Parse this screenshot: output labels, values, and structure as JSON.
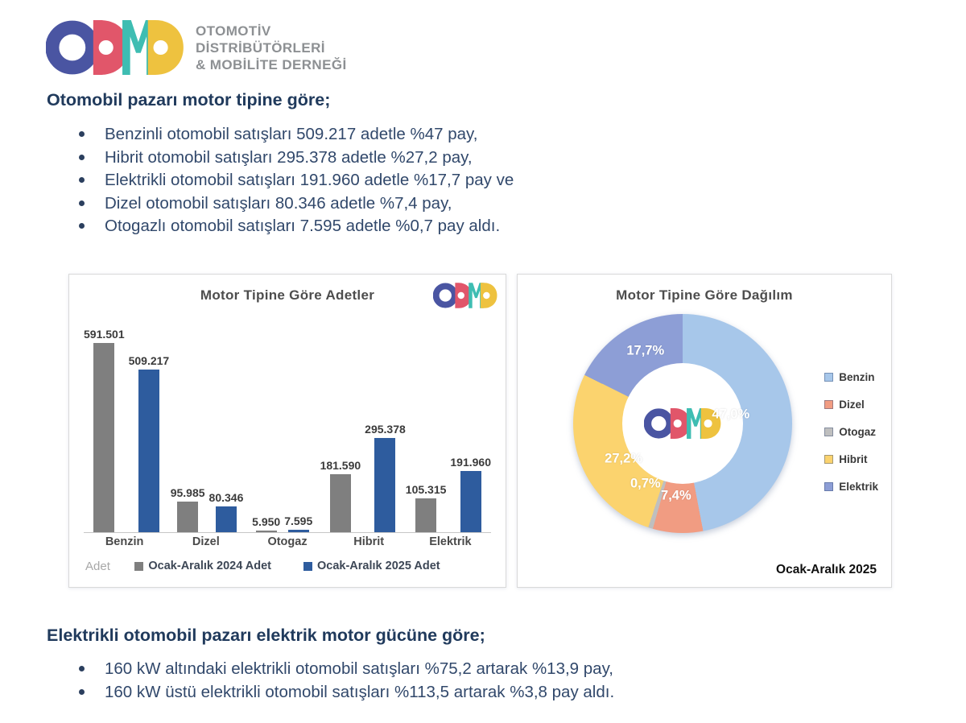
{
  "brand": {
    "name": "ODMD",
    "org_lines": [
      "OTOMOTİV",
      "DİSTRİBÜTÖRLERİ",
      "& MOBİLİTE DERNEĞİ"
    ],
    "logo_colors": {
      "o": "#4a55a2",
      "d1": "#e1566a",
      "m": "#3ebdb2",
      "d2": "#eec23f"
    }
  },
  "sections": [
    {
      "heading": "Otomobil pazarı motor tipine göre;",
      "bullets": [
        "Benzinli otomobil satışları 509.217 adetle %47 pay,",
        "Hibrit otomobil satışları 295.378 adetle %27,2 pay,",
        "Elektrikli otomobil satışları 191.960 adetle %17,7 pay ve",
        "Dizel otomobil satışları 80.346 adetle %7,4 pay,",
        "Otogazlı otomobil satışları 7.595 adetle %0,7 pay aldı."
      ]
    },
    {
      "heading": "Elektrikli otomobil pazarı elektrik motor gücüne göre;",
      "bullets": [
        "160 kW altındaki elektrikli otomobil satışları %75,2 artarak %13,9 pay,",
        "160 kW üstü elektrikli otomobil satışları %113,5 artarak %3,8 pay aldı."
      ]
    }
  ],
  "chart_data": [
    {
      "type": "bar",
      "title": "Motor Tipine Göre Adetler",
      "categories": [
        "Benzin",
        "Dizel",
        "Otogaz",
        "Hibrit",
        "Elektrik"
      ],
      "series": [
        {
          "name": "Ocak-Aralık 2024 Adet",
          "color": "#7f7f7f",
          "values": [
            591501,
            95985,
            5950,
            181590,
            105315
          ],
          "labels": [
            "591.501",
            "95.985",
            "5.950",
            "181.590",
            "105.315"
          ]
        },
        {
          "name": "Ocak-Aralık 2025 Adet",
          "color": "#2e5c9e",
          "values": [
            509217,
            80346,
            7595,
            295378,
            191960
          ],
          "labels": [
            "509.217",
            "80.346",
            "7.595",
            "295.378",
            "191.960"
          ]
        }
      ],
      "ylabel": "Adet",
      "grid": false,
      "data_labels": true,
      "legend_position": "bottom"
    },
    {
      "type": "pie",
      "donut": true,
      "title": "Motor Tipine Göre Dağılım",
      "categories": [
        "Benzin",
        "Dizel",
        "Otogaz",
        "Hibrit",
        "Elektrik"
      ],
      "values": [
        47.0,
        7.4,
        0.7,
        27.2,
        17.7
      ],
      "labels": [
        "47,0%",
        "7,4%",
        "0,7%",
        "27,2%",
        "17,7%"
      ],
      "colors": [
        "#a7c7ea",
        "#f19c82",
        "#bfbfbf",
        "#fbd36e",
        "#8d9ed6"
      ],
      "label_color": "#ffffff",
      "legend_position": "right",
      "footnote": "Ocak-Aralık 2025"
    }
  ]
}
